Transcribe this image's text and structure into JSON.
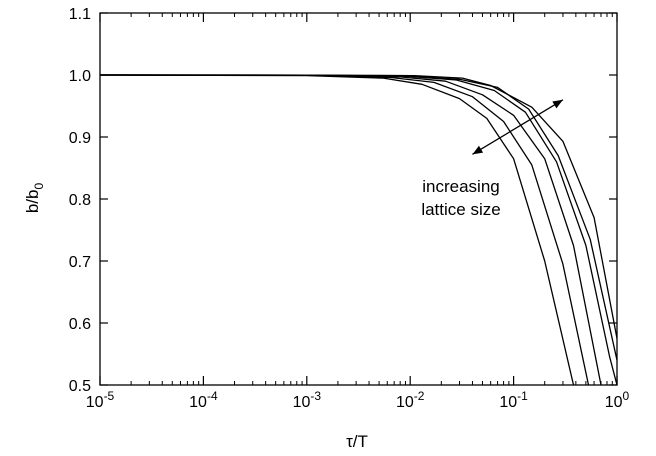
{
  "chart_data": {
    "type": "line",
    "title": "",
    "xlabel": "τ/T",
    "ylabel": "b/b₀",
    "ylabel_main": "b/b",
    "ylabel_sub": "0",
    "xscale": "log",
    "xlim": [
      1e-05,
      1
    ],
    "ylim": [
      0.5,
      1.1
    ],
    "xticks": [
      {
        "value": 1e-05,
        "base": "10",
        "exp": "-5"
      },
      {
        "value": 0.0001,
        "base": "10",
        "exp": "-4"
      },
      {
        "value": 0.001,
        "base": "10",
        "exp": "-3"
      },
      {
        "value": 0.01,
        "base": "10",
        "exp": "-2"
      },
      {
        "value": 0.1,
        "base": "10",
        "exp": "-1"
      },
      {
        "value": 1,
        "base": "10",
        "exp": "0"
      }
    ],
    "yticks": [
      {
        "value": 0.5,
        "label": "0.5"
      },
      {
        "value": 0.6,
        "label": "0.6"
      },
      {
        "value": 0.7,
        "label": "0.7"
      },
      {
        "value": 0.8,
        "label": "0.8"
      },
      {
        "value": 0.9,
        "label": "0.9"
      },
      {
        "value": 1.0,
        "label": "1.0"
      },
      {
        "value": 1.1,
        "label": "1.1"
      }
    ],
    "grid": false,
    "series": [
      {
        "points": [
          [
            1e-05,
            1.0
          ],
          [
            0.001,
            0.999
          ],
          [
            0.0055,
            0.995
          ],
          [
            0.013,
            0.985
          ],
          [
            0.03,
            0.962
          ],
          [
            0.055,
            0.93
          ],
          [
            0.1,
            0.865
          ],
          [
            0.2,
            0.7
          ],
          [
            0.38,
            0.5
          ]
        ]
      },
      {
        "points": [
          [
            1e-05,
            1.0
          ],
          [
            0.001,
            0.9995
          ],
          [
            0.0065,
            0.996
          ],
          [
            0.017,
            0.988
          ],
          [
            0.04,
            0.965
          ],
          [
            0.08,
            0.925
          ],
          [
            0.15,
            0.855
          ],
          [
            0.3,
            0.695
          ],
          [
            0.53,
            0.5
          ]
        ]
      },
      {
        "points": [
          [
            1e-05,
            1.0
          ],
          [
            0.001,
            0.9996
          ],
          [
            0.008,
            0.997
          ],
          [
            0.022,
            0.99
          ],
          [
            0.05,
            0.968
          ],
          [
            0.1,
            0.935
          ],
          [
            0.2,
            0.865
          ],
          [
            0.38,
            0.725
          ],
          [
            0.7,
            0.5
          ]
        ]
      },
      {
        "points": [
          [
            1e-05,
            1.0
          ],
          [
            0.001,
            0.9997
          ],
          [
            0.009,
            0.998
          ],
          [
            0.028,
            0.992
          ],
          [
            0.065,
            0.975
          ],
          [
            0.13,
            0.94
          ],
          [
            0.26,
            0.86
          ],
          [
            0.5,
            0.725
          ],
          [
            0.85,
            0.545
          ],
          [
            1.0,
            0.5
          ]
        ]
      },
      {
        "points": [
          [
            1e-05,
            1.0
          ],
          [
            0.001,
            0.9998
          ],
          [
            0.01,
            0.998
          ],
          [
            0.03,
            0.993
          ],
          [
            0.07,
            0.98
          ],
          [
            0.14,
            0.945
          ],
          [
            0.27,
            0.87
          ],
          [
            0.55,
            0.735
          ],
          [
            1.0,
            0.54
          ]
        ]
      },
      {
        "points": [
          [
            1e-05,
            1.0
          ],
          [
            0.001,
            0.9998
          ],
          [
            0.011,
            0.999
          ],
          [
            0.032,
            0.995
          ],
          [
            0.06,
            0.983
          ],
          [
            0.15,
            0.948
          ],
          [
            0.3,
            0.893
          ],
          [
            0.6,
            0.77
          ],
          [
            1.0,
            0.575
          ]
        ]
      }
    ],
    "annotation": {
      "lines": [
        "increasing",
        "lattice size"
      ],
      "arrow": {
        "from": [
          0.04,
          0.872
        ],
        "to": [
          0.3,
          0.96
        ]
      }
    }
  }
}
